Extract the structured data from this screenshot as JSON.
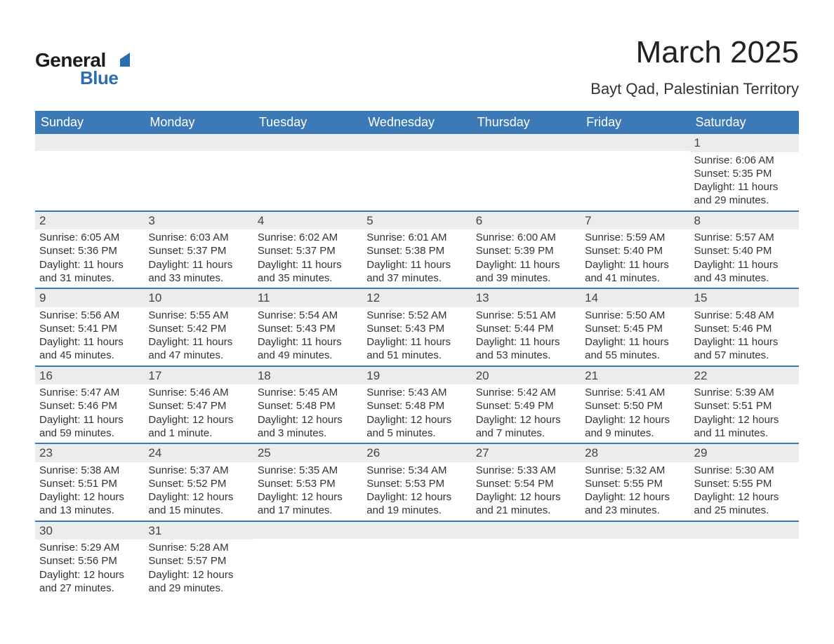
{
  "colors": {
    "header_blue": "#3b79b7",
    "logo_blue": "#2a6eb0",
    "row_divider": "#3b79b7",
    "daynum_bg": "#ececec",
    "text": "#333333",
    "title_text": "#222222",
    "background": "#ffffff"
  },
  "fonts": {
    "family": "Arial",
    "title_size_pt": 33,
    "location_size_pt": 17,
    "dow_size_pt": 14,
    "body_size_pt": 11
  },
  "logo": {
    "text_general": "General",
    "text_blue": "Blue"
  },
  "title": "March 2025",
  "location": "Bayt Qad, Palestinian Territory",
  "days_of_week": [
    "Sunday",
    "Monday",
    "Tuesday",
    "Wednesday",
    "Thursday",
    "Friday",
    "Saturday"
  ],
  "weeks": [
    [
      {
        "n": "",
        "sr": "",
        "ss": "",
        "dl": ""
      },
      {
        "n": "",
        "sr": "",
        "ss": "",
        "dl": ""
      },
      {
        "n": "",
        "sr": "",
        "ss": "",
        "dl": ""
      },
      {
        "n": "",
        "sr": "",
        "ss": "",
        "dl": ""
      },
      {
        "n": "",
        "sr": "",
        "ss": "",
        "dl": ""
      },
      {
        "n": "",
        "sr": "",
        "ss": "",
        "dl": ""
      },
      {
        "n": "1",
        "sr": "Sunrise: 6:06 AM",
        "ss": "Sunset: 5:35 PM",
        "dl": "Daylight: 11 hours and 29 minutes."
      }
    ],
    [
      {
        "n": "2",
        "sr": "Sunrise: 6:05 AM",
        "ss": "Sunset: 5:36 PM",
        "dl": "Daylight: 11 hours and 31 minutes."
      },
      {
        "n": "3",
        "sr": "Sunrise: 6:03 AM",
        "ss": "Sunset: 5:37 PM",
        "dl": "Daylight: 11 hours and 33 minutes."
      },
      {
        "n": "4",
        "sr": "Sunrise: 6:02 AM",
        "ss": "Sunset: 5:37 PM",
        "dl": "Daylight: 11 hours and 35 minutes."
      },
      {
        "n": "5",
        "sr": "Sunrise: 6:01 AM",
        "ss": "Sunset: 5:38 PM",
        "dl": "Daylight: 11 hours and 37 minutes."
      },
      {
        "n": "6",
        "sr": "Sunrise: 6:00 AM",
        "ss": "Sunset: 5:39 PM",
        "dl": "Daylight: 11 hours and 39 minutes."
      },
      {
        "n": "7",
        "sr": "Sunrise: 5:59 AM",
        "ss": "Sunset: 5:40 PM",
        "dl": "Daylight: 11 hours and 41 minutes."
      },
      {
        "n": "8",
        "sr": "Sunrise: 5:57 AM",
        "ss": "Sunset: 5:40 PM",
        "dl": "Daylight: 11 hours and 43 minutes."
      }
    ],
    [
      {
        "n": "9",
        "sr": "Sunrise: 5:56 AM",
        "ss": "Sunset: 5:41 PM",
        "dl": "Daylight: 11 hours and 45 minutes."
      },
      {
        "n": "10",
        "sr": "Sunrise: 5:55 AM",
        "ss": "Sunset: 5:42 PM",
        "dl": "Daylight: 11 hours and 47 minutes."
      },
      {
        "n": "11",
        "sr": "Sunrise: 5:54 AM",
        "ss": "Sunset: 5:43 PM",
        "dl": "Daylight: 11 hours and 49 minutes."
      },
      {
        "n": "12",
        "sr": "Sunrise: 5:52 AM",
        "ss": "Sunset: 5:43 PM",
        "dl": "Daylight: 11 hours and 51 minutes."
      },
      {
        "n": "13",
        "sr": "Sunrise: 5:51 AM",
        "ss": "Sunset: 5:44 PM",
        "dl": "Daylight: 11 hours and 53 minutes."
      },
      {
        "n": "14",
        "sr": "Sunrise: 5:50 AM",
        "ss": "Sunset: 5:45 PM",
        "dl": "Daylight: 11 hours and 55 minutes."
      },
      {
        "n": "15",
        "sr": "Sunrise: 5:48 AM",
        "ss": "Sunset: 5:46 PM",
        "dl": "Daylight: 11 hours and 57 minutes."
      }
    ],
    [
      {
        "n": "16",
        "sr": "Sunrise: 5:47 AM",
        "ss": "Sunset: 5:46 PM",
        "dl": "Daylight: 11 hours and 59 minutes."
      },
      {
        "n": "17",
        "sr": "Sunrise: 5:46 AM",
        "ss": "Sunset: 5:47 PM",
        "dl": "Daylight: 12 hours and 1 minute."
      },
      {
        "n": "18",
        "sr": "Sunrise: 5:45 AM",
        "ss": "Sunset: 5:48 PM",
        "dl": "Daylight: 12 hours and 3 minutes."
      },
      {
        "n": "19",
        "sr": "Sunrise: 5:43 AM",
        "ss": "Sunset: 5:48 PM",
        "dl": "Daylight: 12 hours and 5 minutes."
      },
      {
        "n": "20",
        "sr": "Sunrise: 5:42 AM",
        "ss": "Sunset: 5:49 PM",
        "dl": "Daylight: 12 hours and 7 minutes."
      },
      {
        "n": "21",
        "sr": "Sunrise: 5:41 AM",
        "ss": "Sunset: 5:50 PM",
        "dl": "Daylight: 12 hours and 9 minutes."
      },
      {
        "n": "22",
        "sr": "Sunrise: 5:39 AM",
        "ss": "Sunset: 5:51 PM",
        "dl": "Daylight: 12 hours and 11 minutes."
      }
    ],
    [
      {
        "n": "23",
        "sr": "Sunrise: 5:38 AM",
        "ss": "Sunset: 5:51 PM",
        "dl": "Daylight: 12 hours and 13 minutes."
      },
      {
        "n": "24",
        "sr": "Sunrise: 5:37 AM",
        "ss": "Sunset: 5:52 PM",
        "dl": "Daylight: 12 hours and 15 minutes."
      },
      {
        "n": "25",
        "sr": "Sunrise: 5:35 AM",
        "ss": "Sunset: 5:53 PM",
        "dl": "Daylight: 12 hours and 17 minutes."
      },
      {
        "n": "26",
        "sr": "Sunrise: 5:34 AM",
        "ss": "Sunset: 5:53 PM",
        "dl": "Daylight: 12 hours and 19 minutes."
      },
      {
        "n": "27",
        "sr": "Sunrise: 5:33 AM",
        "ss": "Sunset: 5:54 PM",
        "dl": "Daylight: 12 hours and 21 minutes."
      },
      {
        "n": "28",
        "sr": "Sunrise: 5:32 AM",
        "ss": "Sunset: 5:55 PM",
        "dl": "Daylight: 12 hours and 23 minutes."
      },
      {
        "n": "29",
        "sr": "Sunrise: 5:30 AM",
        "ss": "Sunset: 5:55 PM",
        "dl": "Daylight: 12 hours and 25 minutes."
      }
    ],
    [
      {
        "n": "30",
        "sr": "Sunrise: 5:29 AM",
        "ss": "Sunset: 5:56 PM",
        "dl": "Daylight: 12 hours and 27 minutes."
      },
      {
        "n": "31",
        "sr": "Sunrise: 5:28 AM",
        "ss": "Sunset: 5:57 PM",
        "dl": "Daylight: 12 hours and 29 minutes."
      },
      {
        "n": "",
        "sr": "",
        "ss": "",
        "dl": ""
      },
      {
        "n": "",
        "sr": "",
        "ss": "",
        "dl": ""
      },
      {
        "n": "",
        "sr": "",
        "ss": "",
        "dl": ""
      },
      {
        "n": "",
        "sr": "",
        "ss": "",
        "dl": ""
      },
      {
        "n": "",
        "sr": "",
        "ss": "",
        "dl": ""
      }
    ]
  ]
}
